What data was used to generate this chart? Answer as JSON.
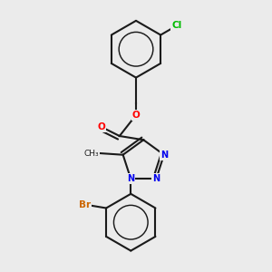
{
  "bg_color": "#ebebeb",
  "bond_color": "#1a1a1a",
  "atom_colors": {
    "O": "#ff0000",
    "N": "#0000ee",
    "Cl": "#00bb00",
    "Br": "#cc6600"
  },
  "font_size": 7.5,
  "line_width": 1.5
}
